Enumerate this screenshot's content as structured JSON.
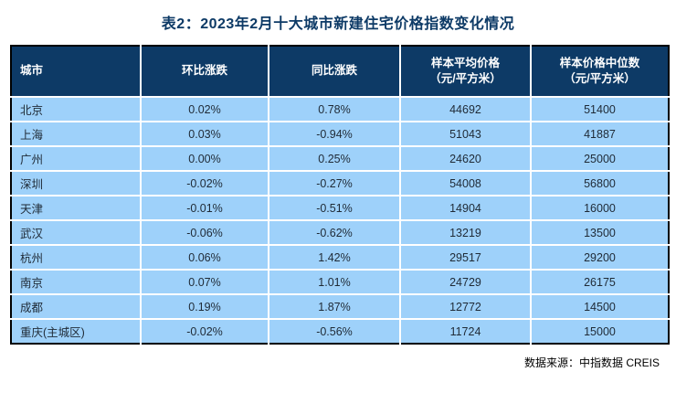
{
  "title": "表2：2023年2月十大城市新建住宅价格指数变化情况",
  "colors": {
    "header_bg": "#0d3a66",
    "row_bg": "#9ed1fa",
    "outer_border": "#000000",
    "separator": "#ffffff",
    "title_text": "#0d3a66",
    "header_text": "#ffffff",
    "body_text": "#1f2a36"
  },
  "table": {
    "columns": [
      {
        "label": "城市",
        "sub": ""
      },
      {
        "label": "环比涨跌",
        "sub": ""
      },
      {
        "label": "同比涨跌",
        "sub": ""
      },
      {
        "label": "样本平均价格",
        "sub": "（元/平方米）"
      },
      {
        "label": "样本价格中位数",
        "sub": "（元/平方米）"
      }
    ],
    "rows": [
      [
        "北京",
        "0.02%",
        "0.78%",
        "44692",
        "51400"
      ],
      [
        "上海",
        "0.03%",
        "-0.94%",
        "51043",
        "41887"
      ],
      [
        "广州",
        "0.00%",
        "0.25%",
        "24620",
        "25000"
      ],
      [
        "深圳",
        "-0.02%",
        "-0.27%",
        "54008",
        "56800"
      ],
      [
        "天津",
        "-0.01%",
        "-0.51%",
        "14904",
        "16000"
      ],
      [
        "武汉",
        "-0.06%",
        "-0.62%",
        "13219",
        "13500"
      ],
      [
        "杭州",
        "0.06%",
        "1.42%",
        "29517",
        "29200"
      ],
      [
        "南京",
        "0.07%",
        "1.01%",
        "24729",
        "26175"
      ],
      [
        "成都",
        "0.19%",
        "1.87%",
        "12772",
        "14500"
      ],
      [
        "重庆(主城区)",
        "-0.02%",
        "-0.56%",
        "11724",
        "15000"
      ]
    ]
  },
  "footer": {
    "source": "数据来源：中指数据 CREIS"
  },
  "chart_data": {
    "type": "table",
    "title": "表2：2023年2月十大城市新建住宅价格指数变化情况",
    "columns": [
      "城市",
      "环比涨跌",
      "同比涨跌",
      "样本平均价格（元/平方米）",
      "样本价格中位数（元/平方米）"
    ],
    "rows": [
      [
        "北京",
        "0.02%",
        "0.78%",
        44692,
        51400
      ],
      [
        "上海",
        "0.03%",
        "-0.94%",
        51043,
        41887
      ],
      [
        "广州",
        "0.00%",
        "0.25%",
        24620,
        25000
      ],
      [
        "深圳",
        "-0.02%",
        "-0.27%",
        54008,
        56800
      ],
      [
        "天津",
        "-0.01%",
        "-0.51%",
        14904,
        16000
      ],
      [
        "武汉",
        "-0.06%",
        "-0.62%",
        13219,
        13500
      ],
      [
        "杭州",
        "0.06%",
        "1.42%",
        29517,
        29200
      ],
      [
        "南京",
        "0.07%",
        "1.01%",
        24729,
        26175
      ],
      [
        "成都",
        "0.19%",
        "1.87%",
        12772,
        14500
      ],
      [
        "重庆(主城区)",
        "-0.02%",
        "-0.56%",
        11724,
        15000
      ]
    ],
    "source": "数据来源：中指数据 CREIS"
  }
}
